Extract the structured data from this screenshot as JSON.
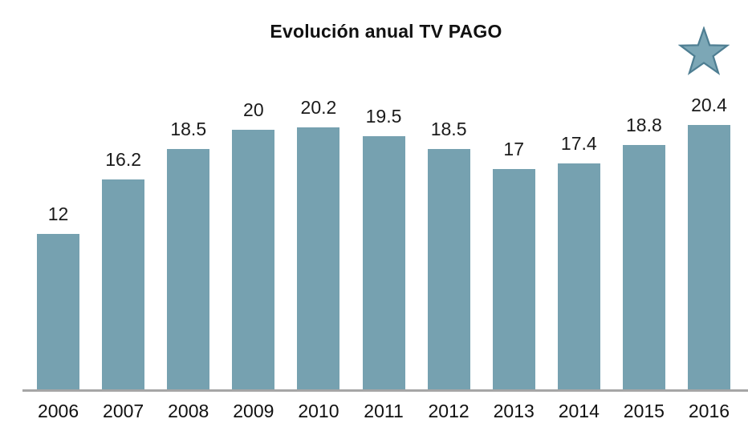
{
  "title": "Evolución anual TV PAGO",
  "colors": {
    "bar": "#76A1B0",
    "star_fill": "#7CA7B6",
    "star_stroke": "#4E7E92",
    "axis_line": "#A6A6A6",
    "text": "#111111"
  },
  "icons": {
    "star": "five-point star marking the latest year (2016)"
  },
  "chart_data": {
    "type": "bar",
    "title": "Evolución anual TV PAGO",
    "categories": [
      "2006",
      "2007",
      "2008",
      "2009",
      "2010",
      "2011",
      "2012",
      "2013",
      "2014",
      "2015",
      "2016"
    ],
    "values": [
      12,
      16.2,
      18.5,
      20,
      20.2,
      19.5,
      18.5,
      17,
      17.4,
      18.8,
      20.4
    ],
    "data_labels": [
      "12",
      "16.2",
      "18.5",
      "20",
      "20.2",
      "19.5",
      "18.5",
      "17",
      "17.4",
      "18.8",
      "20.4"
    ],
    "xlabel": "",
    "ylabel": "",
    "ylim": [
      0,
      21
    ],
    "grid": false,
    "legend": false,
    "y_axis_visible": false,
    "annotation": "star icon above the 2016 bar"
  }
}
